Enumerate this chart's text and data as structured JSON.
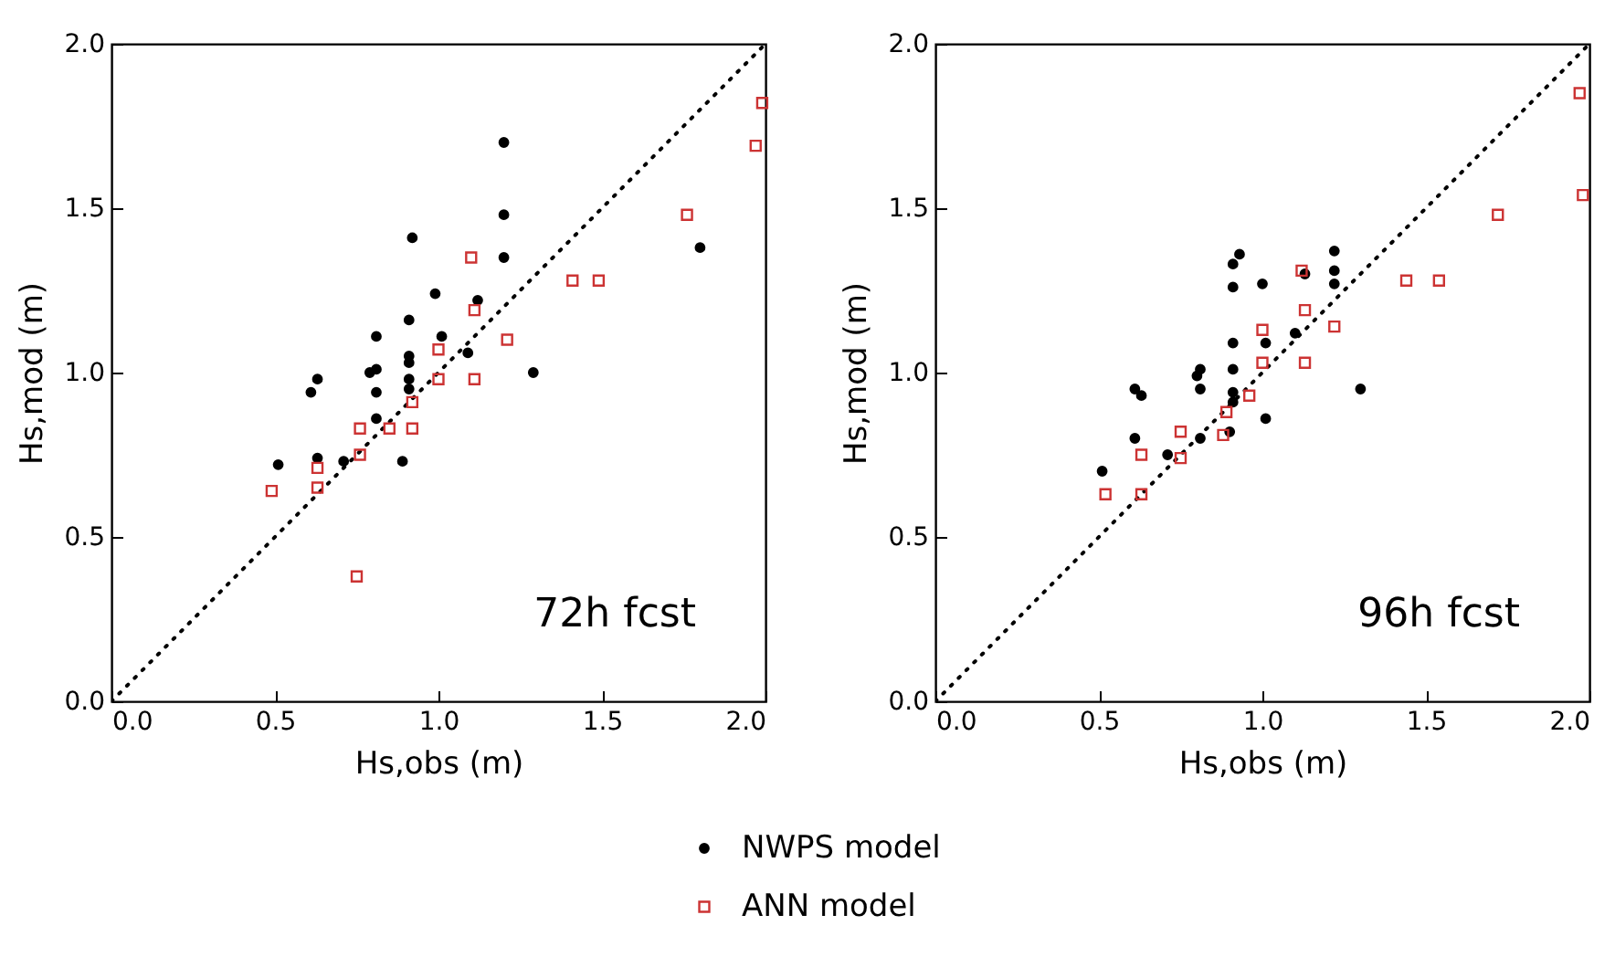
{
  "chart_data": [
    {
      "type": "scatter",
      "xlabel": "Hs,obs (m)",
      "ylabel": "Hs,mod (m)",
      "annotations": [
        "72h fcst"
      ],
      "legend": "bottom",
      "grid": false,
      "xlim": [
        0,
        2
      ],
      "ylim": [
        0,
        2
      ],
      "xticks": [
        {
          "value": 0,
          "label": "0.0"
        },
        {
          "value": 0.5,
          "label": "0.5"
        },
        {
          "value": 1,
          "label": "1.0"
        },
        {
          "value": 1.5,
          "label": "1.5"
        },
        {
          "value": 2,
          "label": "2.0"
        }
      ],
      "yticks": [
        {
          "value": 0,
          "label": "0.0"
        },
        {
          "value": 0.5,
          "label": "0.5"
        },
        {
          "value": 1,
          "label": "1.0"
        },
        {
          "value": 1.5,
          "label": "1.5"
        },
        {
          "value": 2,
          "label": "2.0"
        }
      ],
      "series": [
        {
          "type": "line",
          "color": "#000000",
          "line_style": "dotted",
          "x": [
            0,
            2
          ],
          "values": [
            0,
            2
          ]
        },
        {
          "name": "NWPS model",
          "color": "#000000",
          "marker": "circle",
          "x": [
            1.2,
            1.2,
            1.2,
            0.92,
            0.99,
            1.12,
            1.01,
            1.09,
            0.91,
            0.91,
            0.91,
            0.91,
            0.91,
            0.81,
            0.81,
            0.79,
            0.81,
            0.81,
            0.63,
            0.61,
            0.51,
            0.63,
            0.71,
            0.89,
            1.29,
            1.8
          ],
          "values": [
            1.7,
            1.48,
            1.35,
            1.41,
            1.24,
            1.22,
            1.11,
            1.06,
            1.16,
            1.05,
            1.03,
            0.98,
            0.95,
            1.11,
            1.01,
            1.0,
            0.94,
            0.86,
            0.98,
            0.94,
            0.72,
            0.74,
            0.73,
            0.73,
            1.0,
            1.38
          ]
        },
        {
          "name": "ANN model",
          "color": "#cc3333",
          "marker": "square",
          "x": [
            1.1,
            1.11,
            1.21,
            1.0,
            1.0,
            1.11,
            0.92,
            0.76,
            0.85,
            0.92,
            0.76,
            0.63,
            0.63,
            0.49,
            0.75,
            1.41,
            1.49,
            1.76,
            1.97,
            1.99
          ],
          "values": [
            1.35,
            1.19,
            1.1,
            1.07,
            0.98,
            0.98,
            0.91,
            0.83,
            0.83,
            0.83,
            0.75,
            0.71,
            0.65,
            0.64,
            0.38,
            1.28,
            1.28,
            1.48,
            1.69,
            1.82
          ]
        }
      ]
    },
    {
      "type": "scatter",
      "xlabel": "Hs,obs (m)",
      "ylabel": "Hs,mod (m)",
      "annotations": [
        "96h fcst"
      ],
      "legend": "bottom",
      "grid": false,
      "xlim": [
        0,
        2
      ],
      "ylim": [
        0,
        2
      ],
      "xticks": [
        {
          "value": 0,
          "label": "0.0"
        },
        {
          "value": 0.5,
          "label": "0.5"
        },
        {
          "value": 1,
          "label": "1.0"
        },
        {
          "value": 1.5,
          "label": "1.5"
        },
        {
          "value": 2,
          "label": "2.0"
        }
      ],
      "yticks": [
        {
          "value": 0,
          "label": "0.0"
        },
        {
          "value": 0.5,
          "label": "0.5"
        },
        {
          "value": 1,
          "label": "1.0"
        },
        {
          "value": 1.5,
          "label": "1.5"
        },
        {
          "value": 2,
          "label": "2.0"
        }
      ],
      "series": [
        {
          "type": "line",
          "color": "#000000",
          "line_style": "dotted",
          "x": [
            0,
            2
          ],
          "values": [
            0,
            2
          ]
        },
        {
          "name": "NWPS model",
          "color": "#000000",
          "marker": "circle",
          "x": [
            0.93,
            0.91,
            0.91,
            1.0,
            1.22,
            1.22,
            1.22,
            1.13,
            1.1,
            1.01,
            0.91,
            0.91,
            0.91,
            0.91,
            1.01,
            0.9,
            0.81,
            0.8,
            0.81,
            0.81,
            0.61,
            0.63,
            0.61,
            0.71,
            0.51,
            1.3
          ],
          "values": [
            1.36,
            1.33,
            1.26,
            1.27,
            1.37,
            1.31,
            1.27,
            1.3,
            1.12,
            1.09,
            1.09,
            1.01,
            0.94,
            0.91,
            0.86,
            0.82,
            1.01,
            0.99,
            0.95,
            0.8,
            0.95,
            0.93,
            0.8,
            0.75,
            0.7,
            0.95
          ]
        },
        {
          "name": "ANN model",
          "color": "#cc3333",
          "marker": "square",
          "x": [
            1.12,
            1.13,
            1.22,
            1.0,
            1.0,
            1.13,
            0.96,
            0.89,
            0.88,
            0.75,
            0.75,
            0.63,
            0.63,
            0.52,
            1.44,
            1.54,
            1.72,
            1.98,
            1.97
          ],
          "values": [
            1.31,
            1.19,
            1.14,
            1.13,
            1.03,
            1.03,
            0.93,
            0.88,
            0.81,
            0.82,
            0.74,
            0.75,
            0.63,
            0.63,
            1.28,
            1.28,
            1.48,
            1.54,
            1.85
          ]
        }
      ]
    }
  ]
}
